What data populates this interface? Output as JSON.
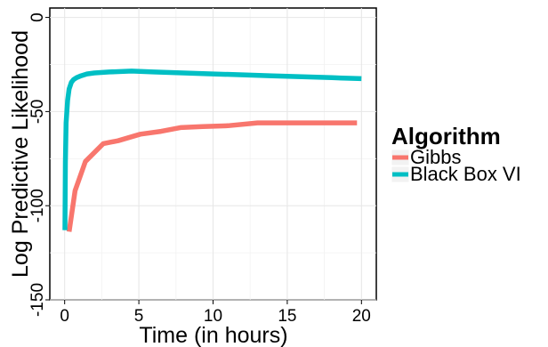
{
  "chart_data": {
    "type": "line",
    "title": "",
    "xlabel": "Time (in hours)",
    "ylabel": "Log Predictive Likelihood",
    "xlim": [
      -1,
      21
    ],
    "ylim": [
      -150,
      5
    ],
    "x_ticks": [
      0,
      5,
      10,
      15,
      20
    ],
    "x_tick_labels": [
      "0",
      "5",
      "10",
      "15",
      "20"
    ],
    "y_ticks": [
      0,
      -50,
      -100,
      -150
    ],
    "y_tick_labels": [
      "0",
      "-50",
      "-100",
      "-150"
    ],
    "grid": true,
    "legend": {
      "title": "Algorithm",
      "position": "right",
      "entries": [
        "Gibbs",
        "Black Box VI"
      ]
    },
    "series": [
      {
        "name": "Gibbs",
        "color": "#F8766D",
        "x": [
          0.3,
          0.7,
          1.4,
          2.6,
          3.6,
          5.1,
          6.5,
          7.8,
          9.3,
          11.0,
          13.0,
          15.0,
          17.0,
          19.7
        ],
        "y": [
          -113.8,
          -92,
          -76.5,
          -67,
          -65.5,
          -62,
          -60.5,
          -58.5,
          -58,
          -57.5,
          -56,
          -56,
          -56,
          -56
        ]
      },
      {
        "name": "Black Box VI",
        "color": "#00BFC4",
        "x": [
          0.02,
          0.05,
          0.1,
          0.2,
          0.3,
          0.45,
          0.6,
          0.8,
          1.1,
          1.5,
          2.0,
          3.0,
          4.5,
          6.0,
          8.0,
          10.0,
          12.0,
          14.0,
          16.0,
          18.0,
          20.0
        ],
        "y": [
          -113,
          -77,
          -56,
          -44,
          -38,
          -34.5,
          -33,
          -32,
          -31,
          -30,
          -29.5,
          -29,
          -28.5,
          -29,
          -29.5,
          -30,
          -30.5,
          -31,
          -31.5,
          -32,
          -32.5
        ]
      }
    ]
  }
}
